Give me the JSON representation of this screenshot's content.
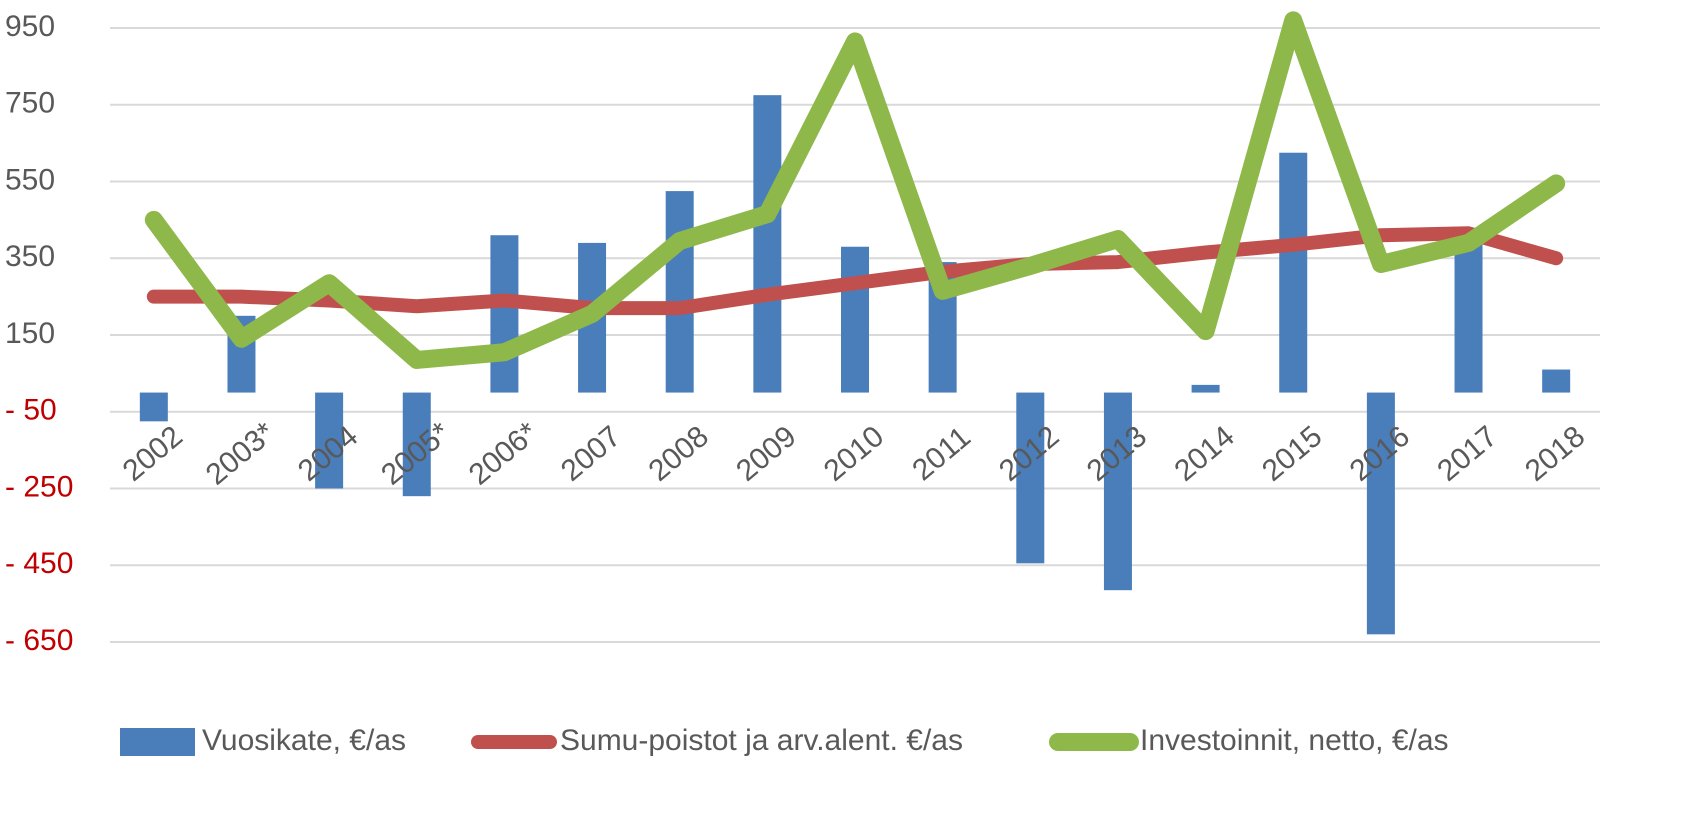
{
  "chart_data": {
    "type": "bar_line",
    "categories": [
      "2002",
      "2003*",
      "2004",
      "2005*",
      "2006*",
      "2007",
      "2008",
      "2009",
      "2010",
      "2011",
      "2012",
      "2013",
      "2014",
      "2015",
      "2016",
      "2017",
      "2018"
    ],
    "series": [
      {
        "name": "Vuosikate, €/as",
        "type": "bar",
        "color": "#4a7ebb",
        "values": [
          -75,
          200,
          -250,
          -270,
          410,
          390,
          525,
          775,
          380,
          340,
          -445,
          -515,
          20,
          625,
          -630,
          410,
          60
        ]
      },
      {
        "name": "Sumu-poistot ja arv.alent. €/as",
        "type": "line",
        "color": "#c0504d",
        "values": [
          250,
          250,
          240,
          225,
          240,
          220,
          220,
          255,
          285,
          315,
          335,
          340,
          365,
          385,
          410,
          415,
          350
        ]
      },
      {
        "name": "Investoinnit, netto, €/as",
        "type": "line",
        "color": "#8fb84a",
        "values": [
          450,
          140,
          285,
          85,
          105,
          205,
          395,
          465,
          915,
          265,
          330,
          400,
          160,
          970,
          335,
          390,
          545
        ]
      }
    ],
    "ylim": [
      -650,
      950
    ],
    "yticks": [
      950,
      750,
      550,
      350,
      150,
      {
        "value": -50,
        "label": "- 50"
      },
      {
        "value": -250,
        "label": "- 250"
      },
      {
        "value": -450,
        "label": "- 450"
      },
      {
        "value": -650,
        "label": "- 650"
      }
    ],
    "negative_tick_color": "#c00000",
    "grid": true,
    "legend": "bottom"
  }
}
